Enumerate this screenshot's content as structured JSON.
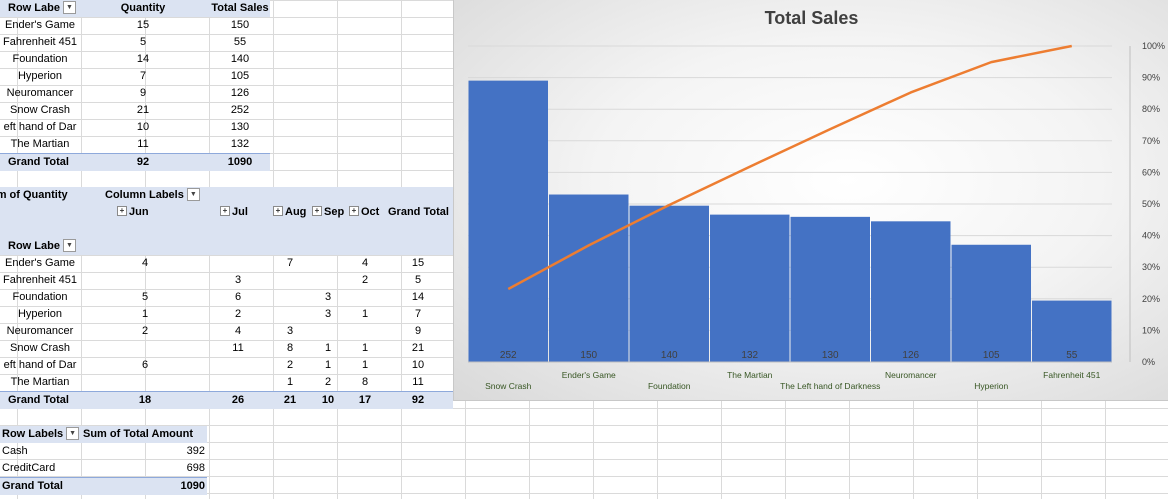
{
  "pivot1": {
    "headers": [
      "Row Labe",
      "Quantity",
      "Total Sales"
    ],
    "rows": [
      [
        "Ender's Game",
        "15",
        "150"
      ],
      [
        "Fahrenheit 451",
        "5",
        "55"
      ],
      [
        "Foundation",
        "14",
        "140"
      ],
      [
        "Hyperion",
        "7",
        "105"
      ],
      [
        "Neuromancer",
        "9",
        "126"
      ],
      [
        "Snow Crash",
        "21",
        "252"
      ],
      [
        "eft hand of Dar",
        "10",
        "130"
      ],
      [
        "The Martian",
        "11",
        "132"
      ]
    ],
    "total": [
      "Grand Total",
      "92",
      "1090"
    ]
  },
  "pivot2": {
    "sum_label": "um of Quantity",
    "column_labels": "Column Labels",
    "months": [
      "Jun",
      "Jul",
      "Aug",
      "Sep",
      "Oct"
    ],
    "grand_total_label": "Grand Total",
    "row_labels": "Row Labe",
    "rows": [
      [
        "Ender's Game",
        "4",
        "",
        "7",
        "",
        "4",
        "15"
      ],
      [
        "Fahrenheit 451",
        "",
        "3",
        "",
        "",
        "2",
        "5"
      ],
      [
        "Foundation",
        "5",
        "6",
        "",
        "3",
        "",
        "14"
      ],
      [
        "Hyperion",
        "1",
        "2",
        "",
        "3",
        "1",
        "7"
      ],
      [
        "Neuromancer",
        "2",
        "4",
        "3",
        "",
        "",
        "9"
      ],
      [
        "Snow Crash",
        "",
        "11",
        "8",
        "1",
        "1",
        "21"
      ],
      [
        "eft hand of Dar",
        "6",
        "",
        "2",
        "1",
        "1",
        "10"
      ],
      [
        "The Martian",
        "",
        "",
        "1",
        "2",
        "8",
        "11"
      ]
    ],
    "total": [
      "Grand Total",
      "18",
      "26",
      "21",
      "10",
      "17",
      "92"
    ]
  },
  "pivot3": {
    "headers": [
      "Row Labels",
      "Sum of Total Amount"
    ],
    "rows": [
      [
        "Cash",
        "392"
      ],
      [
        "CreditCard",
        "698"
      ]
    ],
    "total": [
      "Grand Total",
      "1090"
    ]
  },
  "chart_data": {
    "type": "bar",
    "title": "Total Sales",
    "categories": [
      "Snow Crash",
      "Ender's Game",
      "Foundation",
      "The Martian",
      "The Left hand of Darkness",
      "Neuromancer",
      "Hyperion",
      "Fahrenheit 451"
    ],
    "series": [
      {
        "values": [
          252,
          150,
          140,
          132,
          130,
          126,
          105,
          55
        ],
        "color": "#4472c4"
      },
      {
        "values": [
          23.1,
          36.9,
          49.7,
          61.8,
          73.7,
          85.3,
          94.9,
          100
        ],
        "color": "#ed7d31",
        "axis": "secondary"
      }
    ],
    "y_secondary_ticks": [
      "0%",
      "10%",
      "20%",
      "30%",
      "40%",
      "50%",
      "60%",
      "70%",
      "80%",
      "90%",
      "100%"
    ],
    "ylim": [
      0,
      300
    ],
    "y2lim": [
      0,
      100
    ],
    "grid": true
  },
  "icons": {
    "dropdown": "chevron-down-icon",
    "expand": "plus-box-icon"
  }
}
